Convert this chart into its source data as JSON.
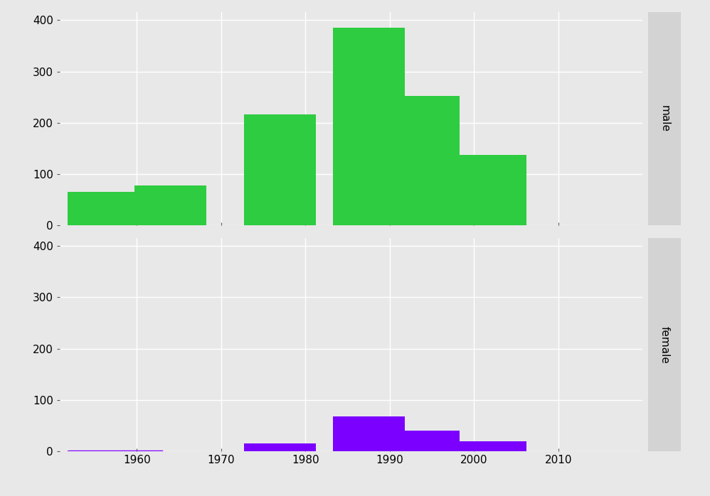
{
  "male_color": "#2ECC40",
  "female_color": "#7B00FF",
  "strip_color": "#D3D3D3",
  "bg_color": "#E8E8E8",
  "male_label": "male",
  "female_label": "female",
  "yticks": [
    0,
    100,
    200,
    300,
    400
  ],
  "ylim": [
    0,
    415
  ],
  "xticks": [
    1960,
    1970,
    1980,
    1990,
    2000,
    2010
  ],
  "xlim": [
    1950.5,
    2020
  ],
  "bar_centers": [
    1956,
    1964,
    1977,
    1987.5,
    1994,
    2002,
    2013
  ],
  "bar_width": 8.5,
  "male_heights": [
    65,
    78,
    217,
    385,
    253,
    138,
    0
  ],
  "female_heights": [
    2,
    0,
    16,
    68,
    40,
    20,
    0
  ],
  "female_line_x": [
    1952,
    1963
  ],
  "female_line_y": 2
}
